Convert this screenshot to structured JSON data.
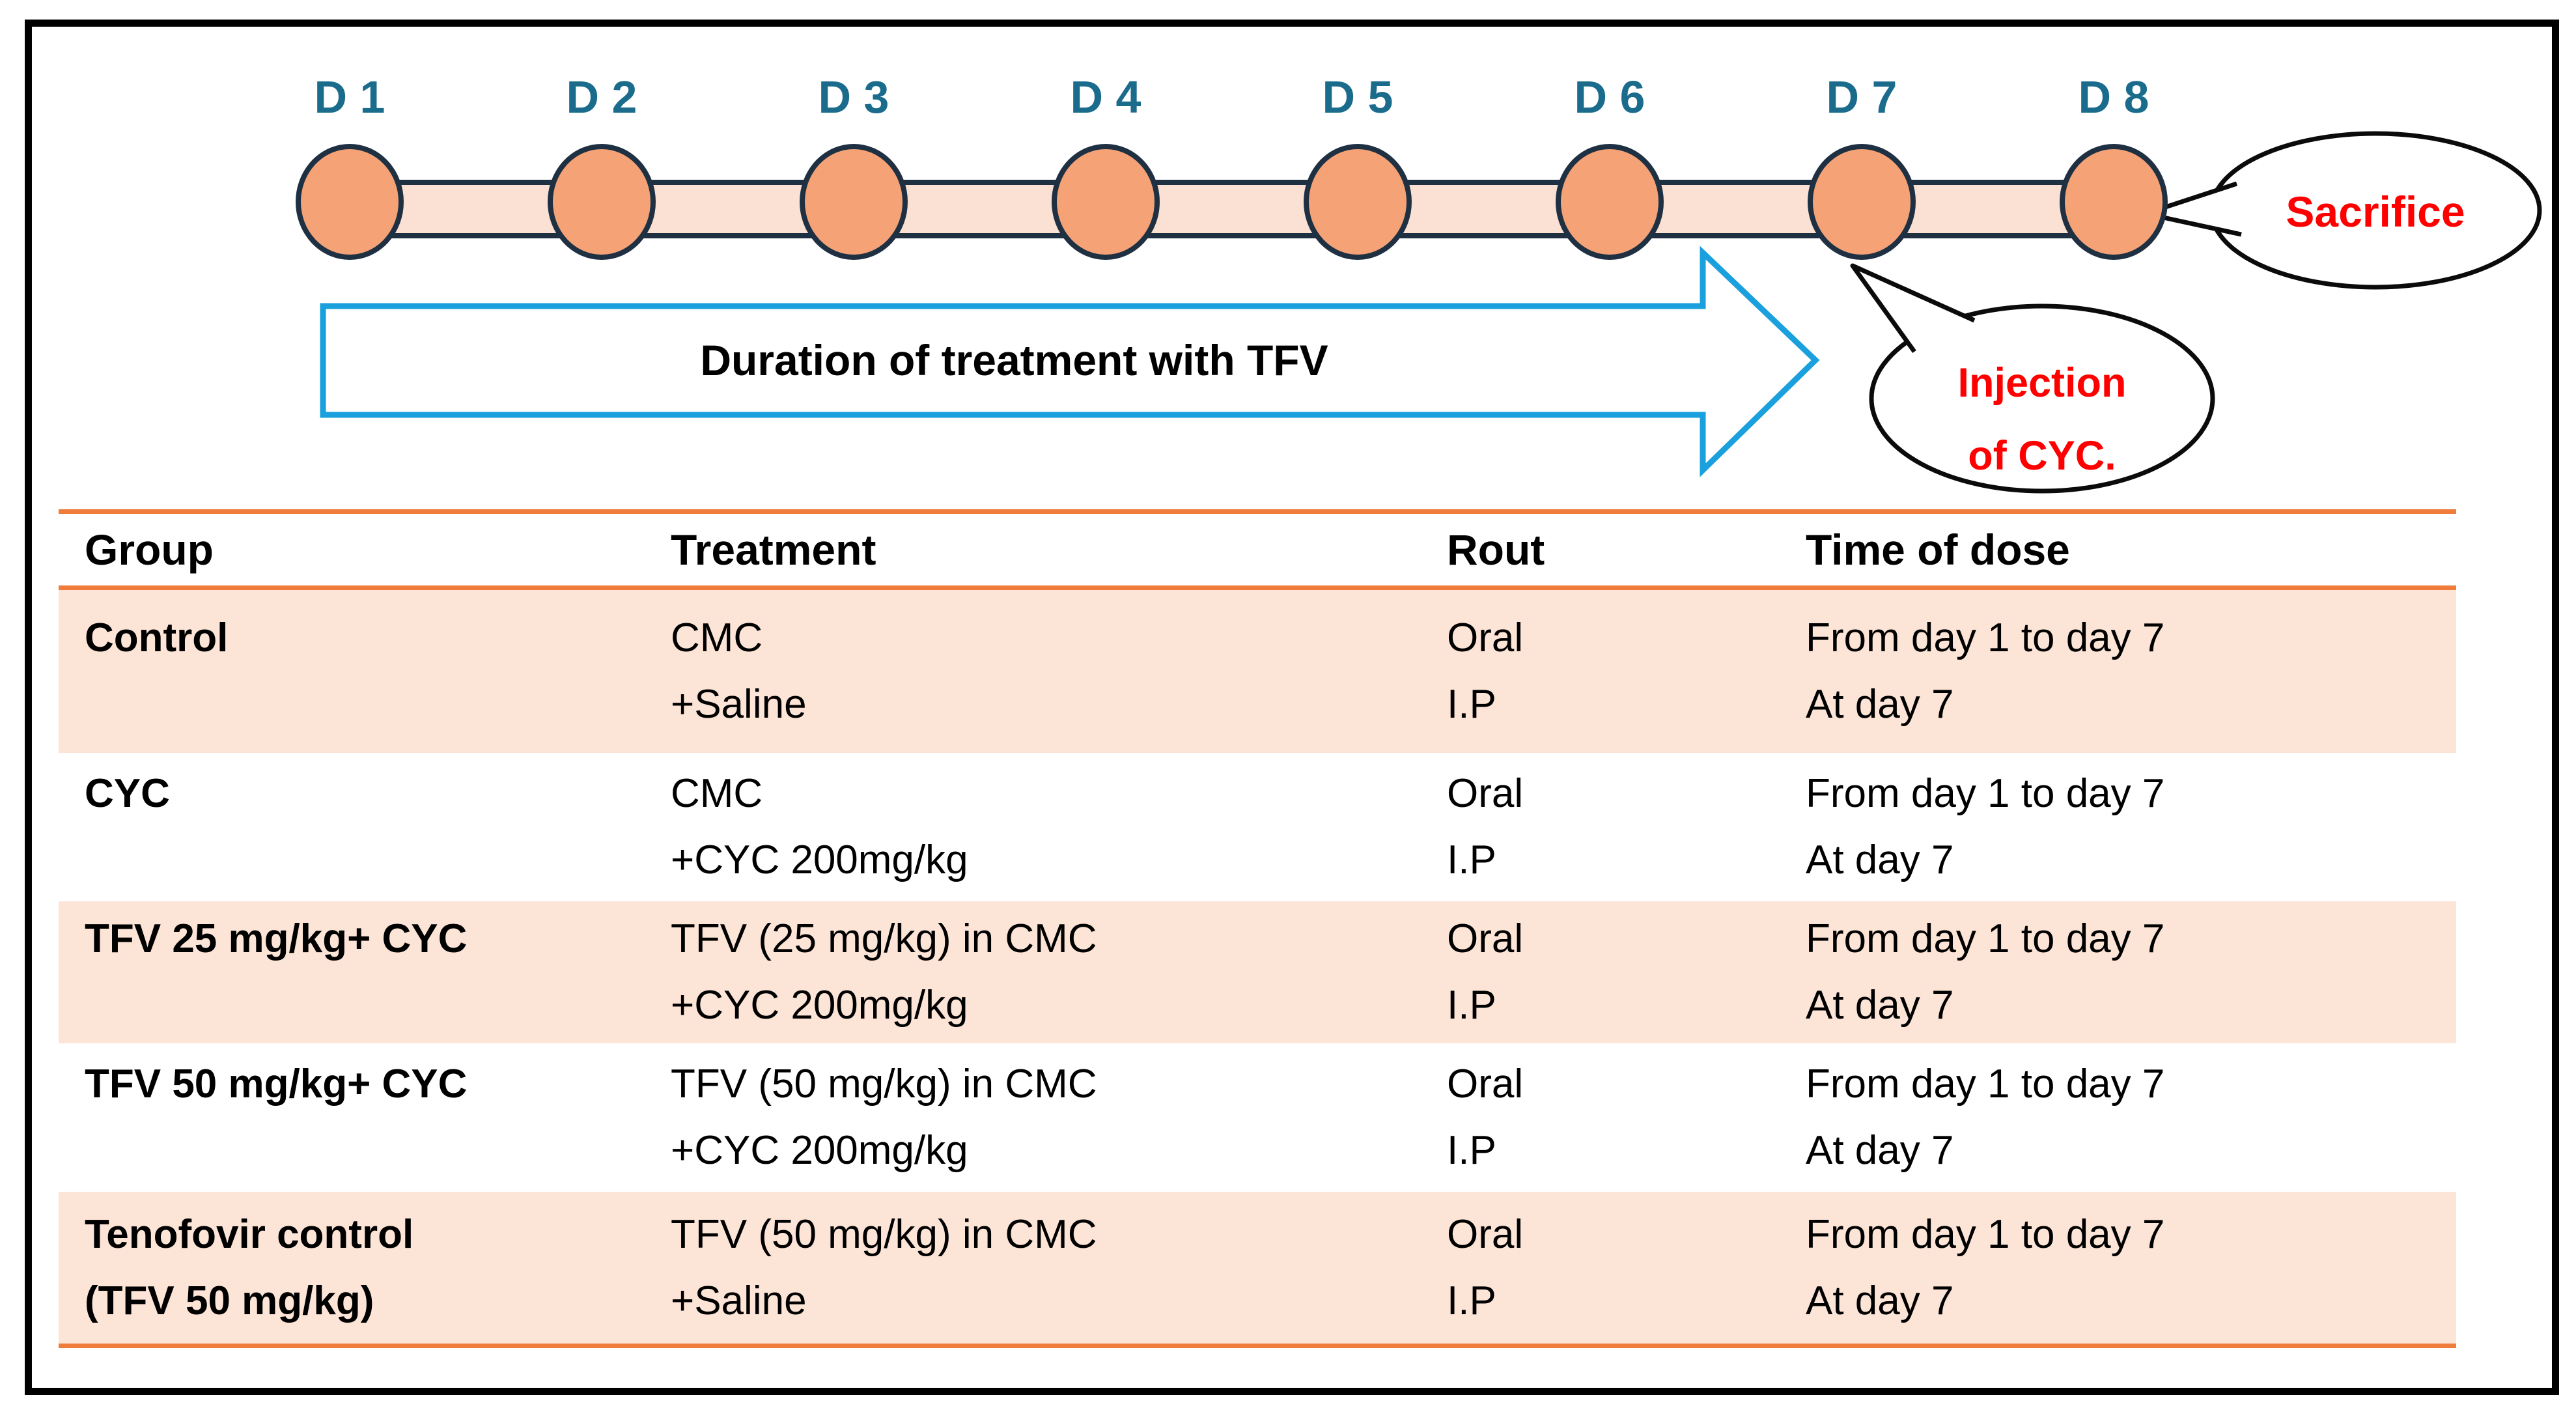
{
  "timeline": {
    "day_labels": [
      "D 1",
      "D 2",
      "D 3",
      "D 4",
      "D 5",
      "D 6",
      "D 7",
      "D 8"
    ],
    "arrow_label": "Duration of treatment with TFV",
    "sacrifice_label": "Sacrifice",
    "injection_label_line1": "Injection",
    "injection_label_line2": "of CYC."
  },
  "table": {
    "headers": [
      "Group",
      "Treatment",
      "Rout",
      "Time of dose"
    ],
    "rows": [
      {
        "group": [
          "Control",
          ""
        ],
        "treatment": [
          "CMC",
          "+Saline"
        ],
        "rout": [
          "Oral",
          "I.P"
        ],
        "time_of_dose": [
          "From day 1 to day 7",
          "At day 7"
        ],
        "shaded": true
      },
      {
        "group": [
          "CYC",
          ""
        ],
        "treatment": [
          "CMC",
          "+CYC 200mg/kg"
        ],
        "rout": [
          "Oral",
          "I.P"
        ],
        "time_of_dose": [
          "From day 1 to day 7",
          "At day 7"
        ],
        "shaded": false
      },
      {
        "group": [
          "TFV 25 mg/kg+ CYC",
          ""
        ],
        "treatment": [
          "TFV (25 mg/kg) in CMC",
          "+CYC 200mg/kg"
        ],
        "rout": [
          "Oral",
          "I.P"
        ],
        "time_of_dose": [
          "From day 1 to day 7",
          "At day 7"
        ],
        "shaded": true
      },
      {
        "group": [
          "TFV 50 mg/kg+ CYC",
          ""
        ],
        "treatment": [
          "TFV (50 mg/kg) in CMC",
          "+CYC 200mg/kg"
        ],
        "rout": [
          "Oral",
          "I.P"
        ],
        "time_of_dose": [
          "From day 1 to day 7",
          "At day 7"
        ],
        "shaded": false
      },
      {
        "group": [
          "Tenofovir control",
          "(TFV 50 mg/kg)"
        ],
        "treatment": [
          "TFV (50 mg/kg) in CMC",
          "+Saline"
        ],
        "rout": [
          "Oral",
          "I.P"
        ],
        "time_of_dose": [
          "From day 1 to day 7",
          "At day 7"
        ],
        "shaded": true
      }
    ]
  },
  "colors": {
    "day_label_teal": "#1A6B8C",
    "marker_fill": "#F5A376",
    "marker_stroke": "#1F3043",
    "timeline_bar_fill": "#FBE1D3",
    "arrow_outline": "#1AA0DC",
    "callout_text_red": "#FF0000",
    "table_rule_orange": "#F07C3C",
    "shaded_row_bg": "#FCE4D6"
  }
}
